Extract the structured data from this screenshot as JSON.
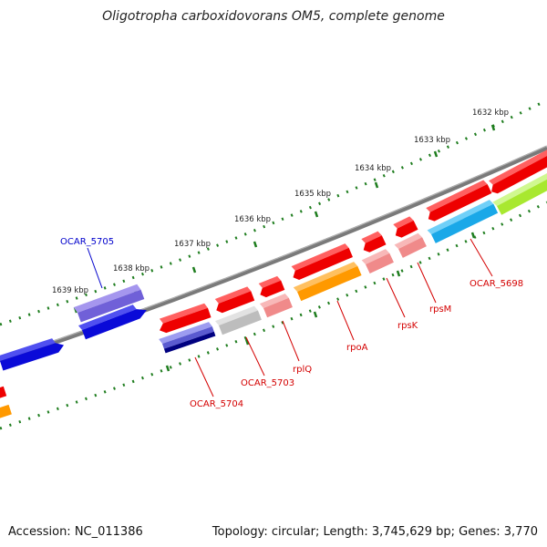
{
  "title": "Oligotropha carboxidovorans OM5, complete genome",
  "footer": {
    "accession": "Accession: NC_011386",
    "summary": "Topology: circular; Length: 3,745,629 bp; Genes: 3,770"
  },
  "scale_labels": [
    "1632 kbp",
    "1633 kbp",
    "1634 kbp",
    "1635 kbp",
    "1636 kbp",
    "1637 kbp",
    "1638 kbp",
    "1639 kbp"
  ],
  "gene_labels": {
    "ocar_5705": "OCAR_5705",
    "ocar_5704": "OCAR_5704",
    "ocar_5703": "OCAR_5703",
    "rplq": "rplQ",
    "rpoa": "rpoA",
    "rpsk": "rpsK",
    "rpsm": "rpsM",
    "ocar_5698": "OCAR_5698"
  },
  "colors": {
    "backbone": "#7a7a7a",
    "tick": "#1e7d1e",
    "gene_red": "#ee0000",
    "label_red": "#d40000",
    "label_blue": "#0000cc",
    "blue": "#0a0ad8",
    "purple": "#7060d8",
    "gray": "#bdbdbd",
    "pink": "#f08a8a",
    "orange": "#ff9900",
    "cyan": "#1aa8e8",
    "lime": "#a8e830",
    "navy": "#000080"
  }
}
